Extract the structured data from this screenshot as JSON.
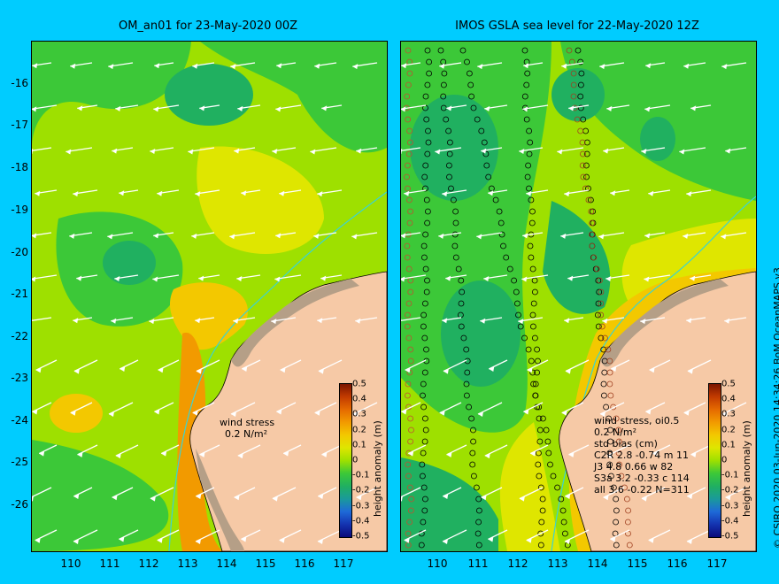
{
  "panels": [
    {
      "title": "OM_an01 for 23-May-2020 00Z",
      "annotation": [
        "wind stress",
        "0.2 N/m²"
      ]
    },
    {
      "title": "IMOS GSLA sea level  for 22-May-2020 12Z",
      "annotation": [
        "wind stress, oi0.5",
        "0.2 N/m²",
        "std  bias (cm)",
        "C2R   2.8 -0.74 m 11",
        "J3     4.8 0.66 w 82",
        "S3a   3.2 -0.33 c 114",
        "all    3.6 -0.22 N=311"
      ]
    }
  ],
  "axes": {
    "lat_ticks": [
      "-16",
      "-17",
      "-18",
      "-19",
      "-20",
      "-21",
      "-22",
      "-23",
      "-24",
      "-25",
      "-26"
    ],
    "lon_ticks": [
      "110",
      "111",
      "112",
      "113",
      "114",
      "115",
      "116",
      "117"
    ]
  },
  "colorbar": {
    "title": "height anomaly (m)",
    "ticks": [
      "0.5",
      "0.4",
      "0.3",
      "0.2",
      "0.1",
      "0",
      "-0.1",
      "-0.2",
      "-0.3",
      "-0.4",
      "-0.5"
    ],
    "colors": [
      "#7a1400",
      "#c23b00",
      "#e56a00",
      "#f29a00",
      "#f3c800",
      "#dfe600",
      "#9ee000",
      "#3cc838",
      "#20b060",
      "#1a9a9a",
      "#1e6ad8",
      "#1433b0",
      "#0a0a7a"
    ]
  },
  "credit": "© CSIRO 2020   03-Jun-2020 14:34:26 BoM OceanMAPS v3",
  "map_colors": {
    "land": "#f6c9a6",
    "coast": "#b59f87",
    "bathy": "#3cd3d0"
  }
}
